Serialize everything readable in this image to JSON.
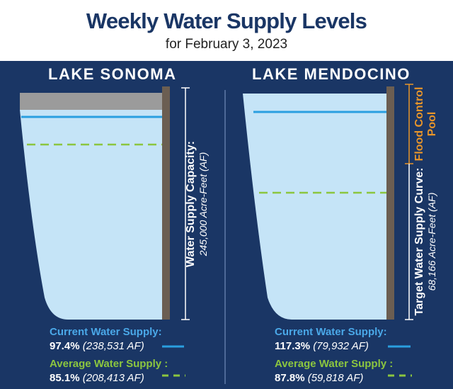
{
  "header": {
    "title": "Weekly Water Supply Levels",
    "subtitle": "for February 3, 2023"
  },
  "colors": {
    "background": "#1a3665",
    "water": "#c5e4f7",
    "flood_pool": "#9b9b9b",
    "dam": "#6b5e52",
    "current_line": "#2a9fe0",
    "average_line": "#8cc63f",
    "flood_label": "#e8952a"
  },
  "lakes": {
    "sonoma": {
      "name": "LAKE SONOMA",
      "capacity_label": "Water Supply Capacity:",
      "capacity_value": "245,000 Acre-Feet (AF)",
      "current": {
        "label": "Current Water Supply:",
        "percent": "97.4%",
        "af": "(238,531 AF)",
        "value": 97.4
      },
      "average": {
        "label": "Average Water Supply :",
        "percent": "85.1%",
        "af": "(208,413 AF)",
        "value": 85.1
      }
    },
    "mendocino": {
      "name": "LAKE MENDOCINO",
      "flood_label_1": "Flood Control",
      "flood_label_2": "Pool",
      "capacity_label": "Target Water Supply Curve:",
      "capacity_value": "68,166 Acre-Feet (AF)",
      "current": {
        "label": "Current Water Supply:",
        "percent": "117.3%",
        "af": "(79,932 AF)",
        "value": 117.3
      },
      "average": {
        "label": "Average Water Supply :",
        "percent": "87.8%",
        "af": "(59,818 AF)",
        "value": 87.8
      }
    }
  }
}
